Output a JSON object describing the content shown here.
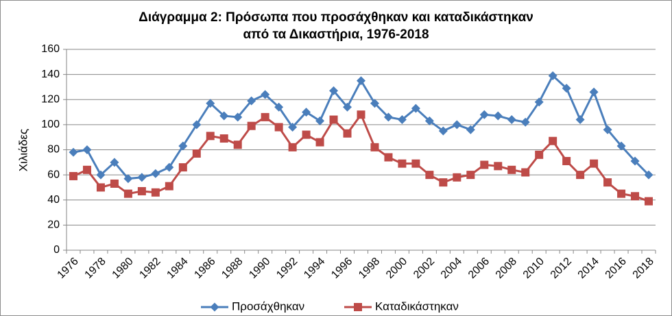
{
  "chart_data": {
    "type": "line",
    "title_line1": "Διάγραμμα 2: Πρόσωπα που προσάχθηκαν και καταδικάστηκαν",
    "title_line2": "από τα Δικαστήρια, 1976-2018",
    "xlabel": "",
    "ylabel": "Χιλιάδες",
    "ylim": [
      0,
      160
    ],
    "yticks": [
      0,
      20,
      40,
      60,
      80,
      100,
      120,
      140,
      160
    ],
    "xticks": [
      1976,
      1978,
      1980,
      1982,
      1984,
      1986,
      1988,
      1990,
      1992,
      1994,
      1996,
      1998,
      2000,
      2002,
      2004,
      2006,
      2008,
      2010,
      2012,
      2014,
      2016,
      2018
    ],
    "grid": "horizontal",
    "legend_position": "bottom",
    "x": [
      1976,
      1977,
      1978,
      1979,
      1980,
      1981,
      1982,
      1983,
      1984,
      1985,
      1986,
      1987,
      1988,
      1989,
      1990,
      1991,
      1992,
      1993,
      1994,
      1995,
      1996,
      1997,
      1998,
      1999,
      2000,
      2001,
      2002,
      2003,
      2004,
      2005,
      2006,
      2007,
      2008,
      2009,
      2010,
      2011,
      2012,
      2013,
      2014,
      2015,
      2016,
      2017,
      2018
    ],
    "series": [
      {
        "name": "Προσάχθηκαν",
        "color": "#4a7ebb",
        "marker": "diamond",
        "values": [
          78,
          80,
          60,
          70,
          57,
          58,
          61,
          66,
          83,
          100,
          117,
          107,
          106,
          119,
          124,
          114,
          98,
          110,
          103,
          127,
          114,
          135,
          117,
          106,
          104,
          113,
          103,
          95,
          100,
          96,
          108,
          107,
          104,
          102,
          118,
          139,
          129,
          104,
          126,
          96,
          83,
          71,
          60
        ]
      },
      {
        "name": "Καταδικάστηκαν",
        "color": "#be4b48",
        "marker": "square",
        "values": [
          59,
          64,
          50,
          53,
          45,
          47,
          46,
          51,
          66,
          77,
          91,
          89,
          84,
          99,
          106,
          98,
          82,
          92,
          86,
          104,
          93,
          108,
          82,
          74,
          69,
          69,
          60,
          54,
          58,
          60,
          68,
          67,
          64,
          62,
          76,
          87,
          71,
          60,
          69,
          54,
          45,
          43,
          39
        ]
      }
    ]
  }
}
